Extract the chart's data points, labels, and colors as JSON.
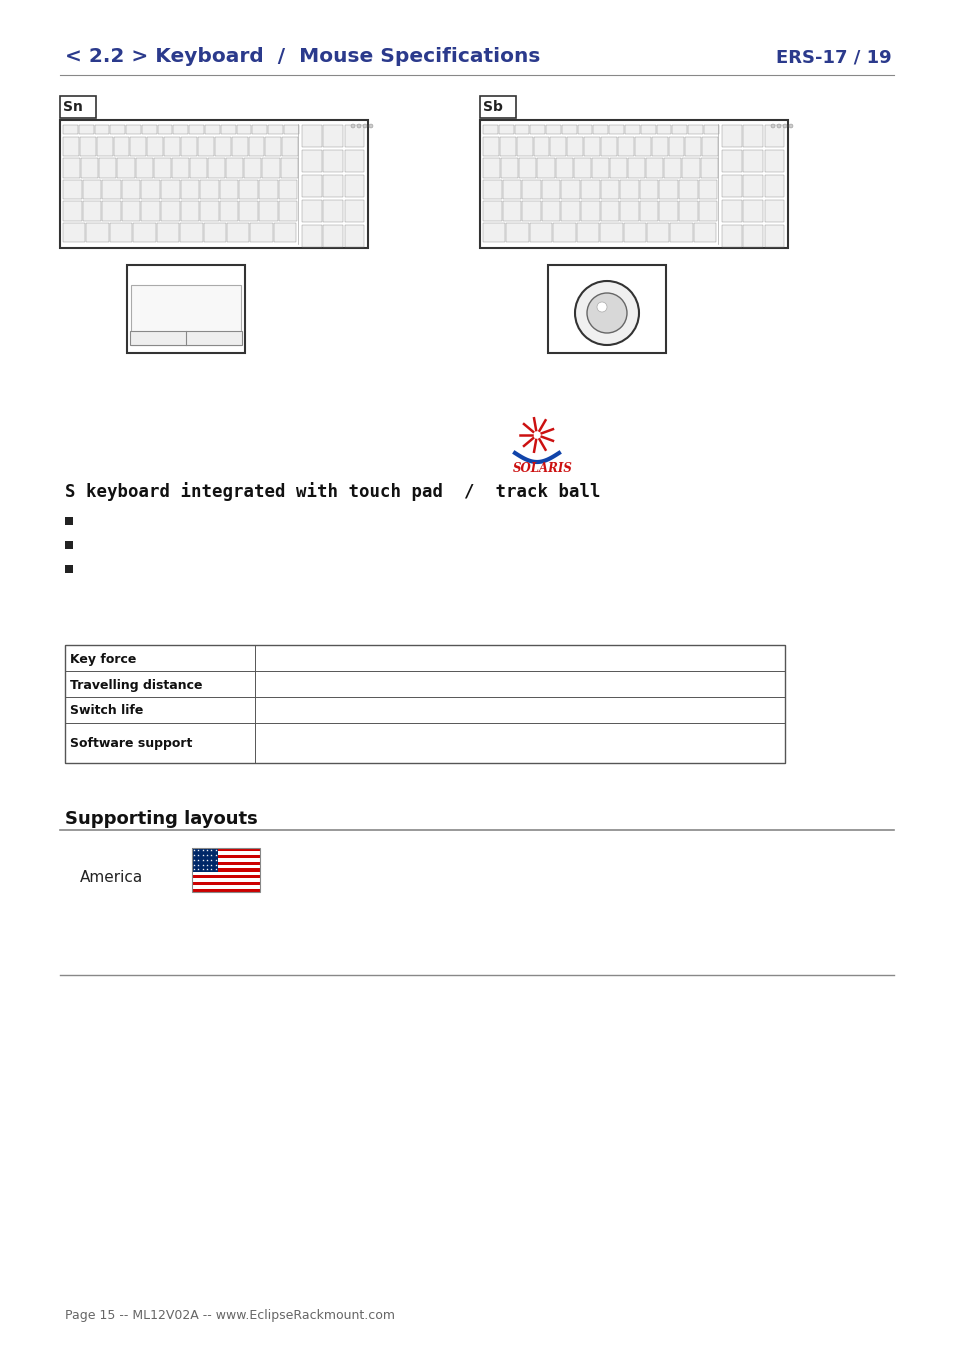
{
  "title_left": "< 2.2 > Keyboard  /  Mouse Specifications",
  "title_right": "ERS-17 / 19",
  "title_color": "#2B3A8C",
  "label_left": "Sn",
  "label_right": "Sb",
  "section_text": "S keyboard integrated with touch pad  /  track ball",
  "bullet_count": 3,
  "table_rows": [
    [
      "Key force",
      ""
    ],
    [
      "Travelling distance",
      ""
    ],
    [
      "Switch life",
      ""
    ],
    [
      "Software support",
      ""
    ]
  ],
  "supporting_layouts_title": "Supporting layouts",
  "america_label": "America",
  "footer": "Page 15 -- ML12V02A -- www.EclipseRackmount.com",
  "bg_color": "#ffffff",
  "dark_text": "#111111",
  "mid_gray": "#888888",
  "table_border": "#555555",
  "header_line_color": "#888888"
}
